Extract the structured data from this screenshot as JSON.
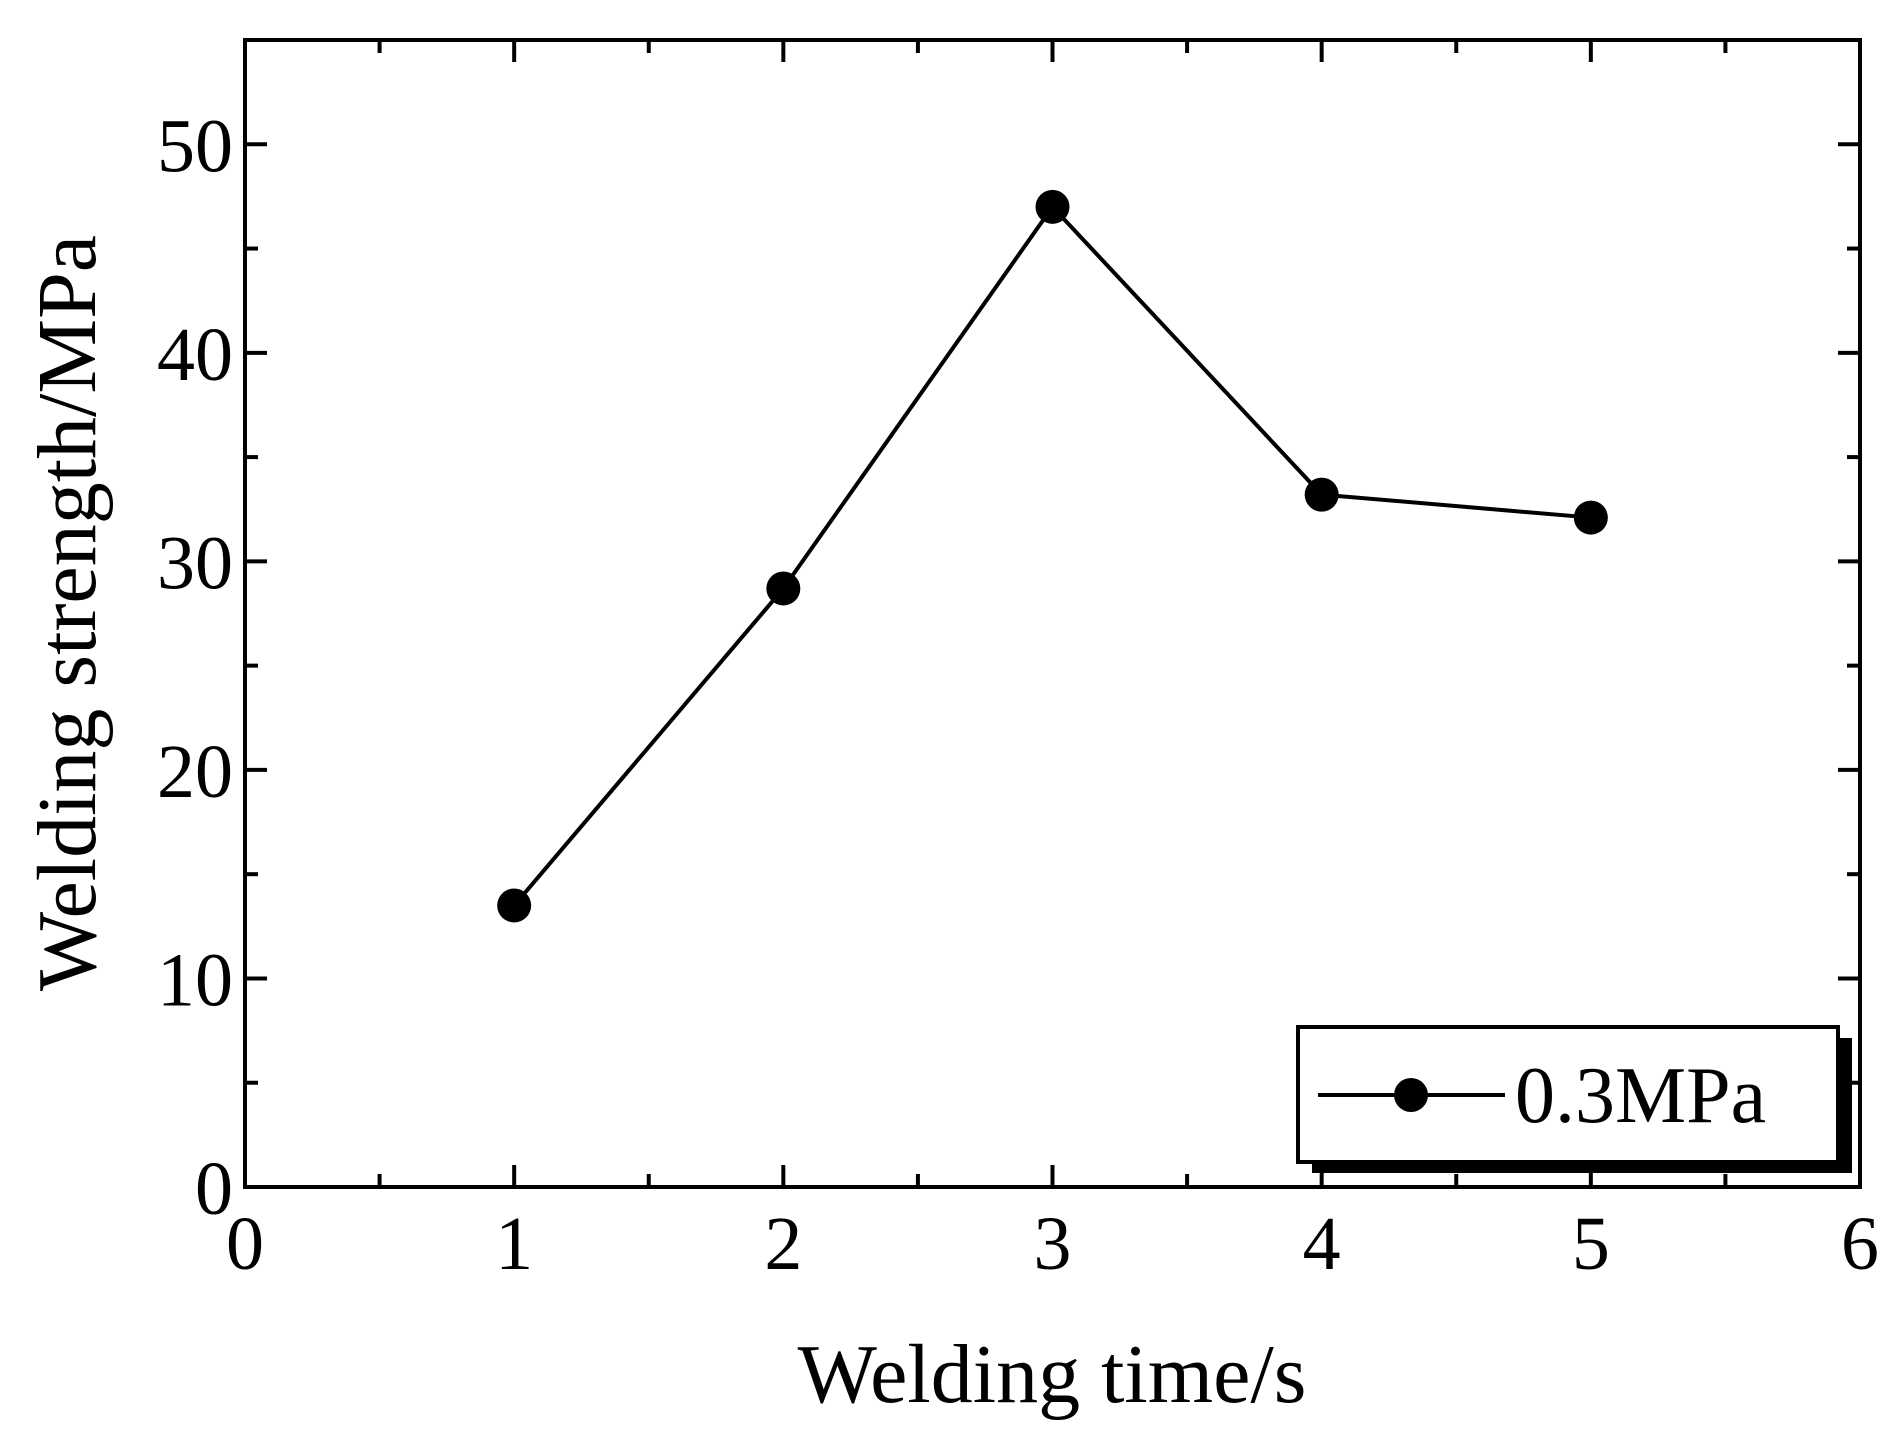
{
  "chart_data": {
    "type": "line",
    "xlabel": "Welding time/s",
    "ylabel": "Welding strength/MPa",
    "xlim": [
      0,
      6
    ],
    "ylim": [
      0,
      55
    ],
    "x_ticks": [
      0,
      1,
      2,
      3,
      4,
      5,
      6
    ],
    "y_ticks": [
      0,
      10,
      20,
      30,
      40,
      50
    ],
    "x_minor_ticks": [
      0.5,
      1.5,
      2.5,
      3.5,
      4.5,
      5.5
    ],
    "y_minor_ticks": [
      5,
      15,
      25,
      35,
      45
    ],
    "grid": false,
    "legend_position": "bottom-right",
    "series": [
      {
        "name": "0.3MPa",
        "marker": "filled-circle",
        "color": "#000000",
        "x": [
          1,
          2,
          3,
          4,
          5
        ],
        "y": [
          13.5,
          28.7,
          47.0,
          33.2,
          32.1
        ]
      }
    ]
  }
}
